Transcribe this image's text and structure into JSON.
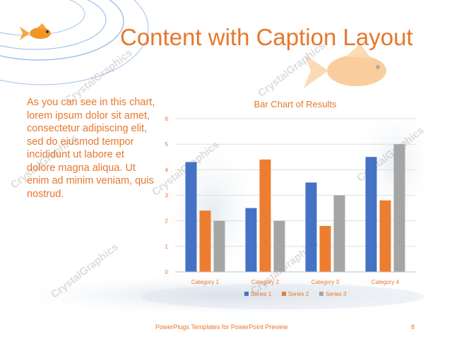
{
  "slide": {
    "title": "Content with Caption Layout",
    "caption": "As you can see in this chart, lorem ipsum dolor sit amet, consectetur adipiscing elit, sed do eiusmod tempor incididunt ut labore et dolore magna aliqua. Ut enim ad minim veniam, quis nostrud.",
    "footer_text": "PowerPlugs Templates for PowerPoint Preview",
    "page_number": "8",
    "watermark_text": "CrystalGraphics",
    "accent_color": "#e8762b",
    "decoration_icons": [
      "goldfish-icon",
      "goldfish-large-icon",
      "water-splash"
    ]
  },
  "chart_data": {
    "type": "bar",
    "title": "Bar Chart of Results",
    "categories": [
      "Category 1",
      "Category 2",
      "Category 3",
      "Category 4"
    ],
    "ylim": [
      0,
      6
    ],
    "yticks": [
      "0",
      "1",
      "2",
      "3",
      "4",
      "5",
      "6"
    ],
    "grid": true,
    "legend_position": "bottom",
    "series": [
      {
        "name": "Series 1",
        "color": "#4472c4",
        "values": [
          4.3,
          2.5,
          3.5,
          4.5
        ]
      },
      {
        "name": "Series 2",
        "color": "#ed7d31",
        "values": [
          2.4,
          4.4,
          1.8,
          2.8
        ]
      },
      {
        "name": "Series 3",
        "color": "#a5a5a5",
        "values": [
          2,
          2,
          3,
          5
        ]
      }
    ]
  }
}
